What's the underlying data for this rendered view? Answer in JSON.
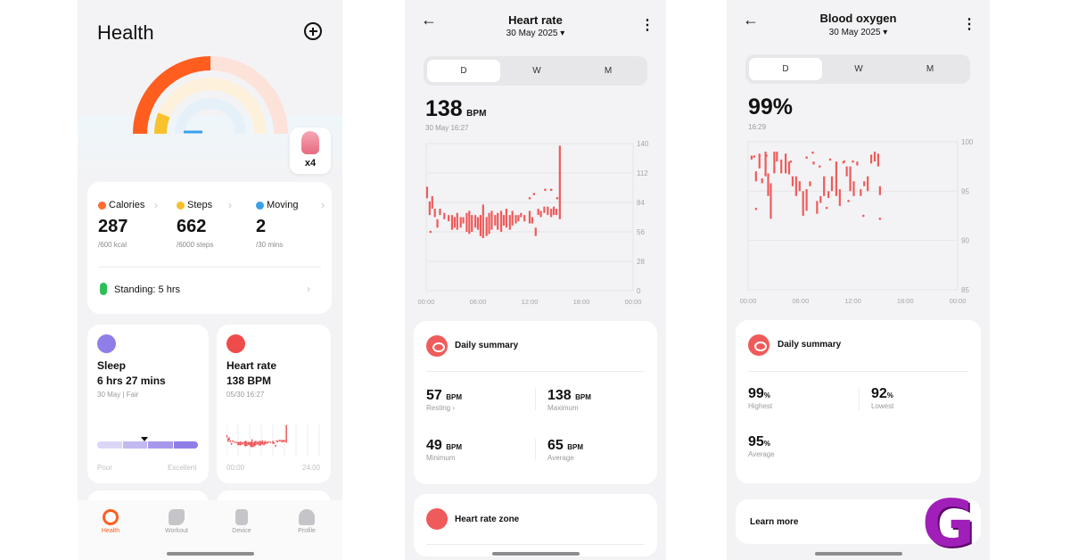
{
  "colors": {
    "accent": "#ef5b5b",
    "move": "#ff6a2e",
    "chart": "#ef5b5b",
    "sleep": "#8f7ee8"
  },
  "phone1": {
    "title": "Health",
    "badge": {
      "text": "x4"
    },
    "metrics": [
      {
        "label": "Calories",
        "value": "287",
        "sub": "/600 kcal",
        "icon": "flame-icon",
        "color": "#ff6a2e"
      },
      {
        "label": "Steps",
        "value": "662",
        "sub": "/6000 steps",
        "icon": "footprint-icon",
        "color": "#f5c02a"
      },
      {
        "label": "Moving",
        "value": "2",
        "sub": "/30 mins",
        "icon": "clock-icon",
        "color": "#3ba0ea"
      }
    ],
    "standing": "Standing: 5 hrs",
    "sleep": {
      "title": "Sleep",
      "value": "6 hrs 27 mins",
      "sub": "30 May | Fair",
      "poor": "Poor",
      "excellent": "Excellent"
    },
    "heart": {
      "title": "Heart rate",
      "value": "138 BPM",
      "sub": "05/30 16:27",
      "t0": "00:00",
      "t1": "24:00"
    },
    "nav": [
      {
        "label": "Health",
        "icon": "health-icon",
        "active": true
      },
      {
        "label": "Workout",
        "icon": "running-icon",
        "active": false
      },
      {
        "label": "Device",
        "icon": "watch-icon",
        "active": false
      },
      {
        "label": "Profile",
        "icon": "profile-icon",
        "active": false
      }
    ]
  },
  "phone2": {
    "title": "Heart rate",
    "date": "30 May 2025",
    "tabs": [
      "D",
      "W",
      "M"
    ],
    "value": "138",
    "unit": "BPM",
    "timestamp": "30 May 16:27",
    "summary_title": "Daily summary",
    "stats": [
      {
        "value": "57",
        "unit": "BPM",
        "label": "Resting"
      },
      {
        "value": "138",
        "unit": "BPM",
        "label": "Maximum"
      },
      {
        "value": "49",
        "unit": "BPM",
        "label": "Minimum"
      },
      {
        "value": "65",
        "unit": "BPM",
        "label": "Average"
      }
    ],
    "zone_title": "Heart rate zone"
  },
  "phone3": {
    "title": "Blood oxygen",
    "date": "30 May 2025",
    "tabs": [
      "D",
      "W",
      "M"
    ],
    "value": "99%",
    "timestamp": "16:29",
    "summary_title": "Daily summary",
    "stats": [
      {
        "value": "99",
        "unit": "%",
        "label": "Highest"
      },
      {
        "value": "92",
        "unit": "%",
        "label": "Lowest"
      },
      {
        "value": "95",
        "unit": "%",
        "label": "Average"
      }
    ],
    "learn_more": "Learn more",
    "logo_letter": "G"
  },
  "chart_data": [
    {
      "type": "bar",
      "x_ticks": [
        "00:00",
        "06:00",
        "12:00",
        "18:00",
        "00:00"
      ],
      "y_ticks": [
        140,
        112,
        84,
        56,
        28,
        0
      ],
      "ylim": [
        0,
        140
      ],
      "xlim": [
        0,
        24
      ],
      "ranges": [
        [
          0.1,
          88,
          99
        ],
        [
          0.4,
          72,
          85
        ],
        [
          0.7,
          78,
          90
        ],
        [
          1.0,
          70,
          78
        ],
        [
          1.3,
          60,
          68
        ],
        [
          1.6,
          72,
          78
        ],
        [
          2.1,
          68,
          74
        ],
        [
          2.6,
          66,
          72
        ],
        [
          3.0,
          58,
          72
        ],
        [
          3.3,
          60,
          70
        ],
        [
          3.6,
          58,
          74
        ],
        [
          4.0,
          60,
          70
        ],
        [
          4.3,
          64,
          70
        ],
        [
          4.7,
          56,
          74
        ],
        [
          5.0,
          54,
          76
        ],
        [
          5.3,
          56,
          72
        ],
        [
          5.7,
          60,
          72
        ],
        [
          6.0,
          58,
          70
        ],
        [
          6.3,
          52,
          72
        ],
        [
          6.6,
          50,
          82
        ],
        [
          7.0,
          52,
          70
        ],
        [
          7.3,
          54,
          74
        ],
        [
          7.6,
          58,
          76
        ],
        [
          8.0,
          62,
          72
        ],
        [
          8.3,
          58,
          74
        ],
        [
          8.7,
          56,
          76
        ],
        [
          9.0,
          62,
          72
        ],
        [
          9.3,
          60,
          78
        ],
        [
          9.7,
          58,
          72
        ],
        [
          10.0,
          62,
          76
        ],
        [
          10.4,
          64,
          72
        ],
        [
          10.7,
          66,
          72
        ],
        [
          11.0,
          70,
          74
        ],
        [
          11.4,
          66,
          72
        ],
        [
          12.0,
          64,
          76
        ],
        [
          12.3,
          64,
          70
        ],
        [
          12.7,
          52,
          60
        ],
        [
          13.0,
          72,
          78
        ],
        [
          13.3,
          70,
          76
        ],
        [
          13.7,
          74,
          80
        ],
        [
          14.1,
          72,
          80
        ],
        [
          14.5,
          70,
          78
        ],
        [
          14.8,
          72,
          80
        ],
        [
          15.1,
          72,
          78
        ],
        [
          15.5,
          68,
          138
        ]
      ],
      "points": [
        [
          0.5,
          56
        ],
        [
          12.5,
          92
        ],
        [
          13.8,
          96
        ],
        [
          14.5,
          96
        ],
        [
          15.2,
          88
        ],
        [
          12.0,
          88
        ]
      ]
    },
    {
      "type": "bar",
      "x_ticks": [
        "00:00",
        "06:00",
        "12:00",
        "18:00",
        "00:00"
      ],
      "y_ticks": [
        100,
        95,
        90,
        85
      ],
      "ylim": [
        85,
        100
      ],
      "xlim": [
        0,
        24
      ],
      "ranges": [
        [
          0.4,
          98.2,
          98.6
        ],
        [
          0.9,
          96,
          97
        ],
        [
          1.3,
          97.3,
          98.8
        ],
        [
          1.6,
          95.8,
          96.3
        ],
        [
          2.0,
          96.5,
          99
        ],
        [
          2.3,
          94.5,
          96.8
        ],
        [
          2.6,
          92.2,
          95.8
        ],
        [
          3.0,
          96.8,
          99
        ],
        [
          3.3,
          98,
          99
        ],
        [
          3.8,
          96.8,
          98.2
        ],
        [
          4.3,
          96.8,
          98.8
        ],
        [
          4.7,
          96.7,
          98
        ],
        [
          5.1,
          95.5,
          96.5
        ],
        [
          5.5,
          94.5,
          96.5
        ],
        [
          5.9,
          95,
          96
        ],
        [
          6.3,
          92.5,
          95
        ],
        [
          6.7,
          93,
          95.2
        ],
        [
          7.1,
          95.5,
          96
        ],
        [
          7.5,
          97.7,
          98
        ],
        [
          7.9,
          92.7,
          94
        ],
        [
          8.3,
          93.8,
          94.5
        ],
        [
          8.7,
          94.5,
          96.5
        ],
        [
          9.2,
          94.3,
          95
        ],
        [
          9.6,
          95,
          96.5
        ],
        [
          10.1,
          94.5,
          98
        ],
        [
          10.5,
          93.5,
          95.2
        ],
        [
          10.9,
          97.8,
          98
        ],
        [
          11.3,
          96.5,
          97.5
        ],
        [
          11.7,
          95,
          97.5
        ],
        [
          12.1,
          94.5,
          96
        ],
        [
          12.5,
          97.6,
          98
        ],
        [
          12.9,
          94.5,
          95.2
        ],
        [
          13.3,
          95.5,
          96
        ],
        [
          13.7,
          95,
          96.5
        ],
        [
          14.1,
          97.8,
          98.7
        ],
        [
          14.5,
          98,
          99
        ],
        [
          14.9,
          97.5,
          98.8
        ],
        [
          15.1,
          94.6,
          95.5
        ]
      ],
      "points": [
        [
          0.7,
          98.5
        ],
        [
          0.9,
          93.2
        ],
        [
          2.1,
          98.6
        ],
        [
          4.9,
          98
        ],
        [
          7.4,
          98.9
        ],
        [
          8.2,
          97.5
        ],
        [
          9.4,
          98.2
        ],
        [
          11.0,
          98
        ],
        [
          12.0,
          98
        ],
        [
          13.2,
          92.5
        ],
        [
          15.1,
          92.2
        ],
        [
          6.7,
          98.4
        ],
        [
          9.0,
          93.3
        ],
        [
          11.5,
          94
        ]
      ]
    }
  ]
}
